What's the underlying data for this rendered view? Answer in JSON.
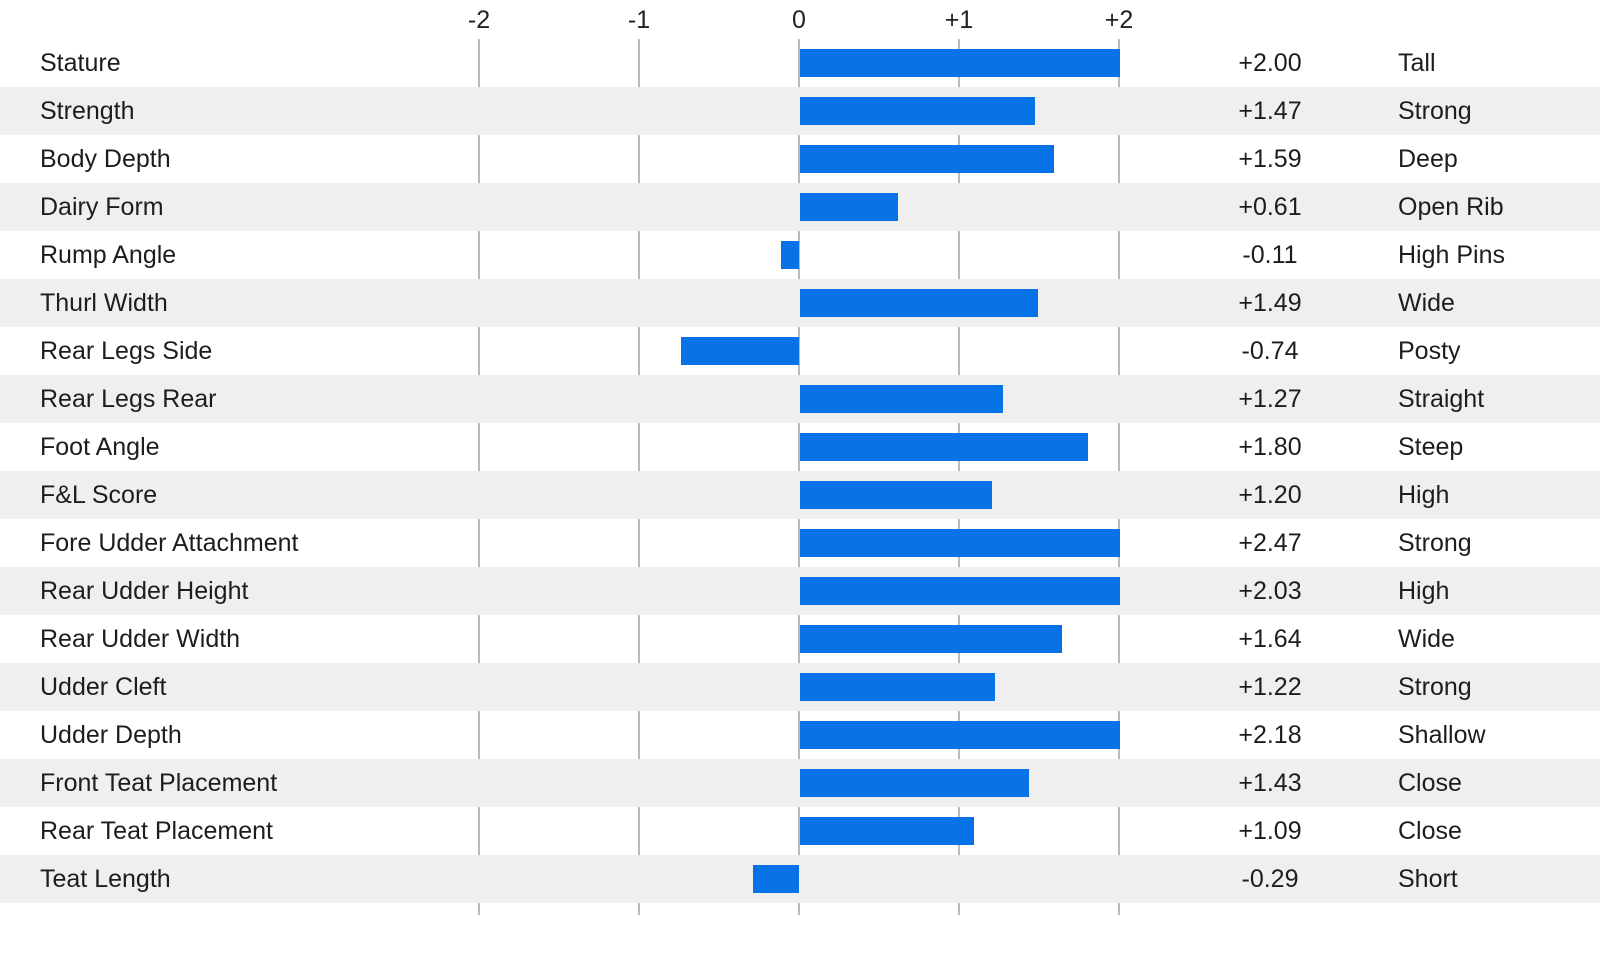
{
  "chart_data": {
    "type": "bar",
    "orientation": "horizontal",
    "title": "",
    "xlabel": "",
    "ylabel": "",
    "xlim": [
      -2.5,
      2.5
    ],
    "bar_display_clamp": [
      -2,
      2
    ],
    "grid": true,
    "axis_ticks": [
      {
        "value": -2,
        "label": "-2"
      },
      {
        "value": -1,
        "label": "-1"
      },
      {
        "value": 0,
        "label": "0"
      },
      {
        "value": 1,
        "label": "+1"
      },
      {
        "value": 2,
        "label": "+2"
      }
    ],
    "categories": [
      "Stature",
      "Strength",
      "Body Depth",
      "Dairy Form",
      "Rump Angle",
      "Thurl Width",
      "Rear Legs Side",
      "Rear Legs Rear",
      "Foot Angle",
      "F&L Score",
      "Fore Udder Attachment",
      "Rear Udder Height",
      "Rear Udder Width",
      "Udder Cleft",
      "Udder Depth",
      "Front Teat Placement",
      "Rear Teat Placement",
      "Teat Length"
    ],
    "values": [
      2.0,
      1.47,
      1.59,
      0.61,
      -0.11,
      1.49,
      -0.74,
      1.27,
      1.8,
      1.2,
      2.47,
      2.03,
      1.64,
      1.22,
      2.18,
      1.43,
      1.09,
      -0.29
    ],
    "rows": [
      {
        "label": "Stature",
        "value": 2.0,
        "value_label": "+2.00",
        "descriptor": "Tall"
      },
      {
        "label": "Strength",
        "value": 1.47,
        "value_label": "+1.47",
        "descriptor": "Strong"
      },
      {
        "label": "Body Depth",
        "value": 1.59,
        "value_label": "+1.59",
        "descriptor": "Deep"
      },
      {
        "label": "Dairy Form",
        "value": 0.61,
        "value_label": "+0.61",
        "descriptor": "Open Rib"
      },
      {
        "label": "Rump Angle",
        "value": -0.11,
        "value_label": "-0.11",
        "descriptor": "High Pins"
      },
      {
        "label": "Thurl Width",
        "value": 1.49,
        "value_label": "+1.49",
        "descriptor": "Wide"
      },
      {
        "label": "Rear Legs Side",
        "value": -0.74,
        "value_label": "-0.74",
        "descriptor": "Posty"
      },
      {
        "label": "Rear Legs Rear",
        "value": 1.27,
        "value_label": "+1.27",
        "descriptor": "Straight"
      },
      {
        "label": "Foot Angle",
        "value": 1.8,
        "value_label": "+1.80",
        "descriptor": "Steep"
      },
      {
        "label": "F&L Score",
        "value": 1.2,
        "value_label": "+1.20",
        "descriptor": "High"
      },
      {
        "label": "Fore Udder Attachment",
        "value": 2.47,
        "value_label": "+2.47",
        "descriptor": "Strong"
      },
      {
        "label": "Rear Udder Height",
        "value": 2.03,
        "value_label": "+2.03",
        "descriptor": "High"
      },
      {
        "label": "Rear Udder Width",
        "value": 1.64,
        "value_label": "+1.64",
        "descriptor": "Wide"
      },
      {
        "label": "Udder Cleft",
        "value": 1.22,
        "value_label": "+1.22",
        "descriptor": "Strong"
      },
      {
        "label": "Udder Depth",
        "value": 2.18,
        "value_label": "+2.18",
        "descriptor": "Shallow"
      },
      {
        "label": "Front Teat Placement",
        "value": 1.43,
        "value_label": "+1.43",
        "descriptor": "Close"
      },
      {
        "label": "Rear Teat Placement",
        "value": 1.09,
        "value_label": "+1.09",
        "descriptor": "Close"
      },
      {
        "label": "Teat Length",
        "value": -0.29,
        "value_label": "-0.29",
        "descriptor": "Short"
      }
    ],
    "legend": null
  },
  "colors": {
    "bar": "#0672e6",
    "row_alt_background": "#efefef",
    "row_background": "#ffffff",
    "gridline": "#b9b9b9",
    "text": "#1d1d1f"
  }
}
